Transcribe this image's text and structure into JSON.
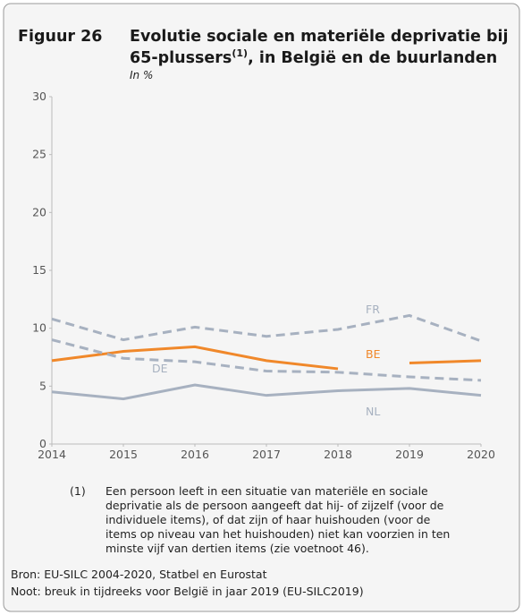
{
  "chart_data": {
    "type": "line",
    "figure_label": "Figuur 26",
    "title_parts": [
      "Evolutie sociale en materiële deprivatie bij",
      "65-plussers",
      "(1)",
      ", in België en de buurlanden"
    ],
    "subtitle": "In %",
    "x": [
      2014,
      2015,
      2016,
      2017,
      2018,
      2019,
      2020
    ],
    "xlim": [
      2014,
      2020
    ],
    "xticks": [
      2014,
      2015,
      2016,
      2017,
      2018,
      2019,
      2020
    ],
    "ylim": [
      0,
      30
    ],
    "yticks": [
      0,
      5,
      10,
      15,
      20,
      25,
      30
    ],
    "series": [
      {
        "name": "FR",
        "color": "#a7b1c0",
        "dashed": true,
        "values": [
          10.8,
          9.0,
          10.1,
          9.3,
          9.9,
          11.1,
          8.9
        ]
      },
      {
        "name": "BE",
        "color": "#f0882a",
        "dashed": false,
        "break_after": 2018,
        "values": [
          7.2,
          8.0,
          8.4,
          7.2,
          6.5,
          7.0,
          7.2
        ]
      },
      {
        "name": "DE",
        "color": "#a7b1c0",
        "dashed": true,
        "values": [
          9.0,
          7.4,
          7.1,
          6.3,
          6.2,
          5.8,
          5.5
        ]
      },
      {
        "name": "NL",
        "color": "#a7b1c0",
        "dashed": false,
        "values": [
          4.5,
          3.9,
          5.1,
          4.2,
          4.6,
          4.8,
          4.2
        ]
      }
    ],
    "footnote_marker": "(1)",
    "footnote_lines": [
      "Een persoon leeft in een situatie van materiële en sociale",
      "deprivatie als de persoon aangeeft dat hij- of zijzelf (voor de",
      "individuele items), of dat zijn of haar huishouden (voor de",
      "items op niveau van het huishouden) niet kan voorzien in ten",
      "minste vijf van dertien items (zie voetnoot 46)."
    ],
    "source": "Bron: EU-SILC 2004-2020, Statbel en Eurostat",
    "note": "Noot: breuk in tijdreeks voor België in jaar 2019 (EU-SILC2019)"
  }
}
